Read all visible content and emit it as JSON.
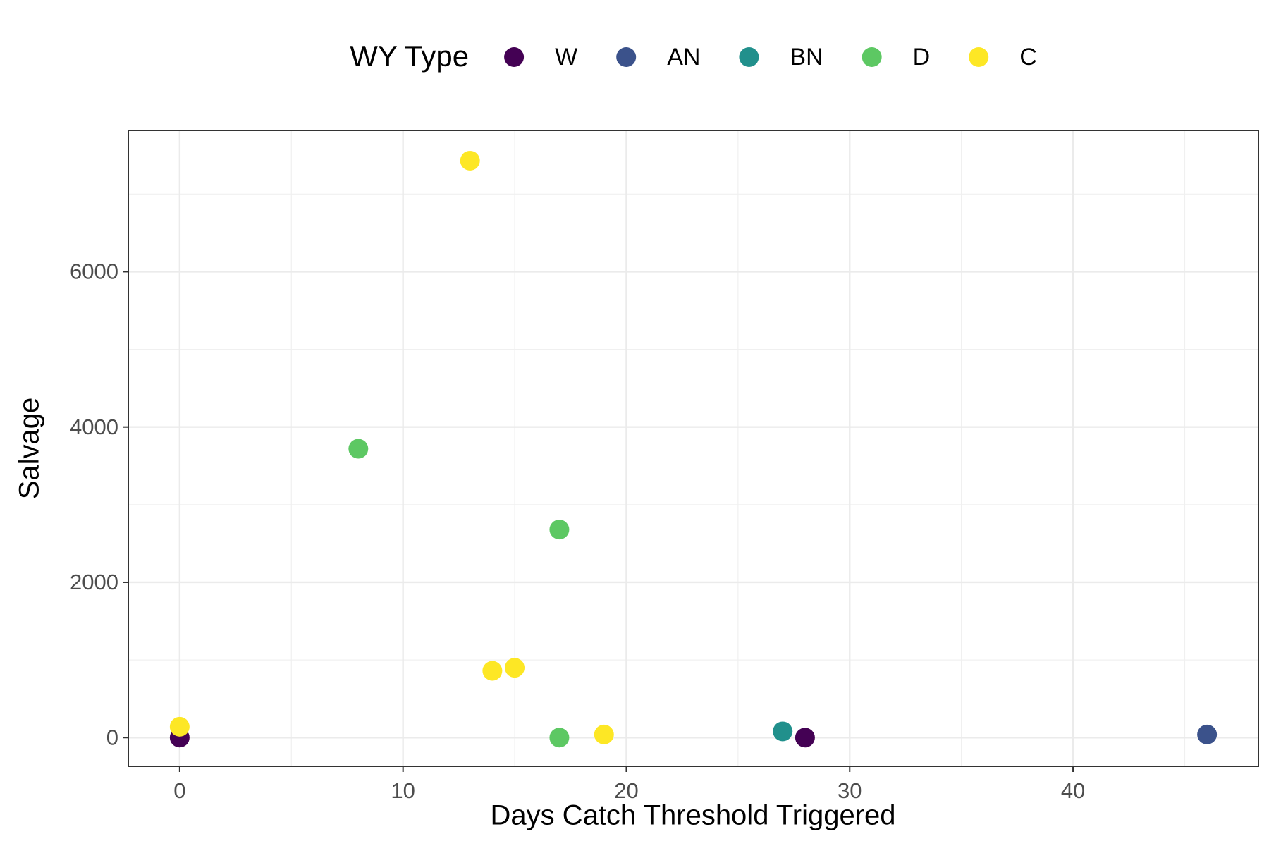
{
  "chart_data": {
    "type": "scatter",
    "xlabel": "Days Catch Threshold Triggered",
    "ylabel": "Salvage",
    "legend_title": "WY Type",
    "legend": "top",
    "grid": true,
    "xlim": [
      -2.3,
      48.3
    ],
    "ylim": [
      -370,
      7820
    ],
    "xticks": [
      0,
      10,
      20,
      30,
      40
    ],
    "yticks": [
      0,
      2000,
      4000,
      6000
    ],
    "series": [
      {
        "name": "W",
        "color": "#440154",
        "x": [
          0,
          28
        ],
        "values": [
          0,
          0
        ]
      },
      {
        "name": "AN",
        "color": "#3b528b",
        "x": [
          46
        ],
        "values": [
          40
        ]
      },
      {
        "name": "BN",
        "color": "#21908c",
        "x": [
          27
        ],
        "values": [
          80
        ]
      },
      {
        "name": "D",
        "color": "#5dc863",
        "x": [
          8,
          17,
          17
        ],
        "values": [
          3720,
          2680,
          0
        ]
      },
      {
        "name": "C",
        "color": "#fde725",
        "x": [
          13,
          14,
          15,
          19,
          0
        ],
        "values": [
          7430,
          860,
          900,
          40,
          140
        ]
      }
    ]
  }
}
